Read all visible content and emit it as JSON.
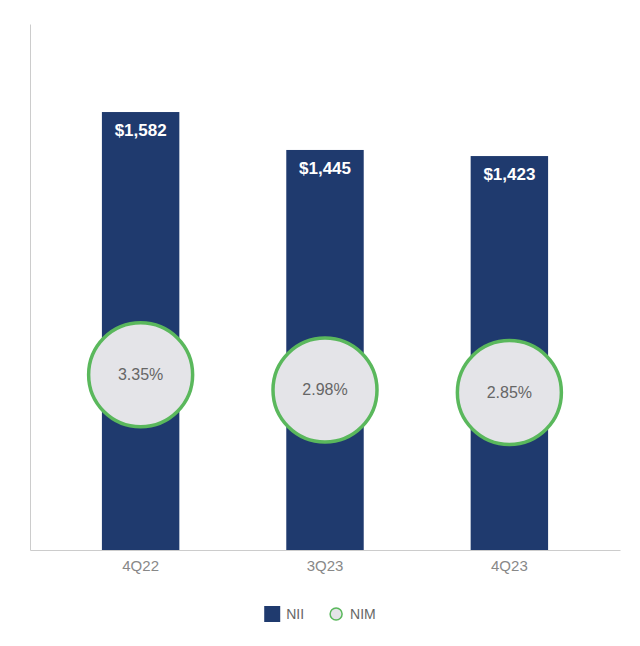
{
  "chart_data": {
    "type": "bar",
    "categories": [
      "4Q22",
      "3Q23",
      "4Q23"
    ],
    "series": [
      {
        "name": "NII",
        "color": "#1f3a6e",
        "values": [
          1582,
          1445,
          1423
        ],
        "value_labels": [
          "$1,582",
          "$1,445",
          "$1,423"
        ]
      },
      {
        "name": "NIM",
        "type": "scatter",
        "marker": "circle",
        "color": "#5ab85c",
        "values": [
          3.35,
          2.98,
          2.85
        ],
        "value_labels": [
          "3.35%",
          "2.98%",
          "2.85%"
        ]
      }
    ],
    "ylim": [
      0,
      1900
    ],
    "grid": false,
    "legend": "bottom",
    "data_labels": true,
    "tick_labels": "x"
  }
}
